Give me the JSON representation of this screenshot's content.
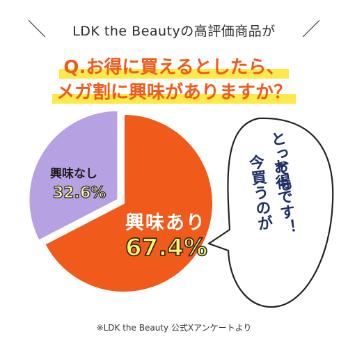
{
  "header": {
    "subtitle": "LDK the Beautyの高評価商品が",
    "question_line1": "Q.お得に買えるとしたら、",
    "question_line2": "メガ割に興味がありますか？"
  },
  "bubble": {
    "lines": [
      "とっても",
      "今買うのが",
      "お得です！"
    ]
  },
  "footnote": "※LDK the Beauty 公式Xアンケートより",
  "colors": {
    "accent": "#f05a1a",
    "highlight": "#fde94a",
    "interested": "#f05a1a",
    "not_interested": "#b6a1e3",
    "bubble_text": "#1e2f66"
  },
  "chart_data": {
    "type": "pie",
    "series": [
      {
        "slices": [
          {
            "label": "興味あり",
            "value": 67.4,
            "value_label": "67.4%",
            "color": "#f05a1a"
          },
          {
            "label": "興味なし",
            "value": 32.6,
            "value_label": "32.6%",
            "color": "#b6a1e3"
          }
        ]
      }
    ],
    "legend": "none",
    "labels_inside_slices": true
  }
}
